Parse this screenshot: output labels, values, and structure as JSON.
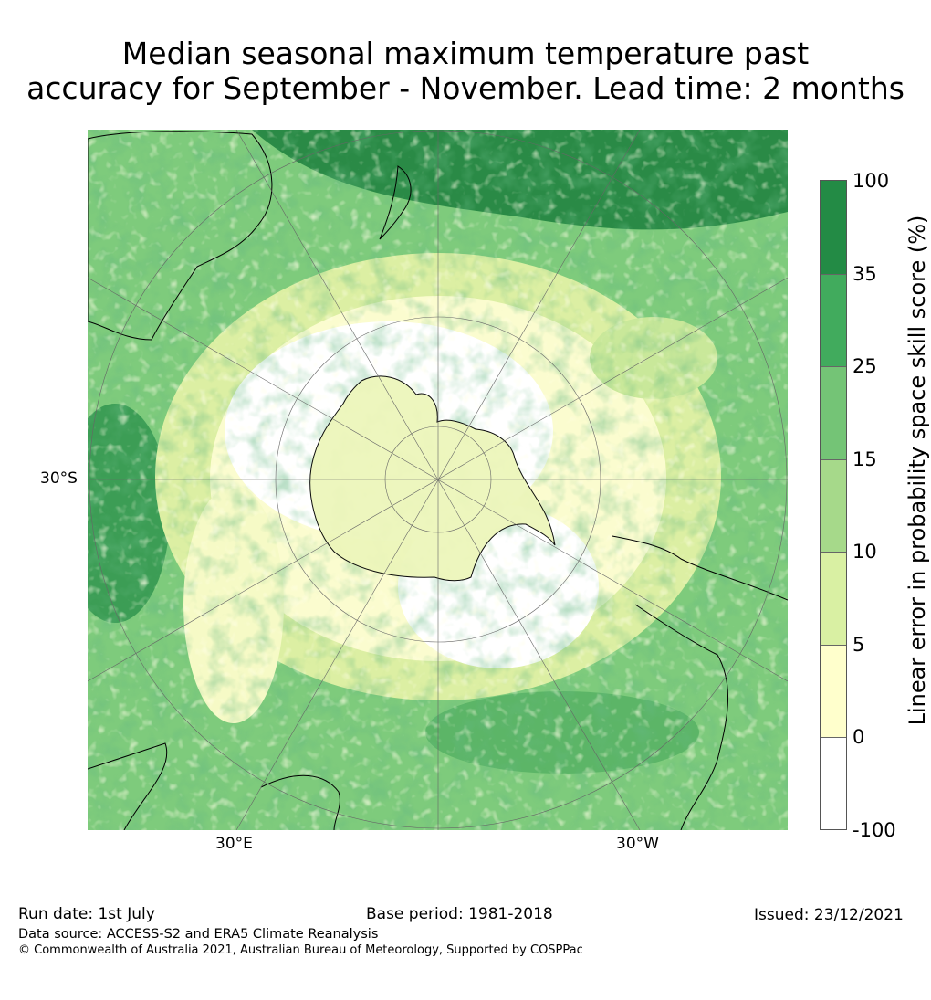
{
  "title_line1": "Median seasonal maximum temperature past",
  "title_line2": "accuracy for September - November. Lead time: 2 months",
  "map": {
    "projection": "south polar stereographic",
    "axis_labels": {
      "left": "30°S",
      "bottom_left": "30°E",
      "bottom_right": "30°W"
    }
  },
  "colorbar": {
    "label": "Linear error in probability space skill score (%)",
    "ticks": [
      "100",
      "35",
      "25",
      "15",
      "10",
      "5",
      "0",
      "-100"
    ],
    "bins": [
      {
        "range": "35 to 100",
        "color": "#238b45"
      },
      {
        "range": "25 to 35",
        "color": "#41ab5d"
      },
      {
        "range": "15 to 25",
        "color": "#74c476"
      },
      {
        "range": "10 to 15",
        "color": "#a6d98a"
      },
      {
        "range": "5 to 10",
        "color": "#d9f0a3"
      },
      {
        "range": "0 to 5",
        "color": "#ffffcc"
      },
      {
        "range": "-100 to 0",
        "color": "#ffffff"
      }
    ]
  },
  "footer": {
    "run_date": "Run date: 1st July",
    "base_period": "Base period: 1981-2018",
    "issued": "Issued: 23/12/2021",
    "data_source": "Data source: ACCESS-S2 and ERA5 Climate Reanalysis",
    "copyright": "© Commonwealth of Australia 2021, Australian Bureau of Meteorology, Supported by COSPPac"
  }
}
